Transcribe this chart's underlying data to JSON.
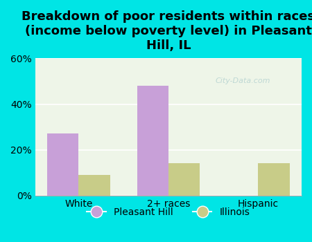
{
  "title": "Breakdown of poor residents within races\n(income below poverty level) in Pleasant\nHill, IL",
  "categories": [
    "White",
    "2+ races",
    "Hispanic"
  ],
  "pleasant_hill": [
    27,
    48,
    0
  ],
  "illinois": [
    9,
    14,
    14
  ],
  "pleasant_hill_color": "#c8a0d8",
  "illinois_color": "#c8cc88",
  "bg_color_fig": "#00e5e5",
  "bg_color_chart": "#eef5e8",
  "ylim": [
    0,
    60
  ],
  "yticks": [
    0,
    20,
    40,
    60
  ],
  "ytick_labels": [
    "0%",
    "20%",
    "40%",
    "60%"
  ],
  "legend_labels": [
    "Pleasant Hill",
    "Illinois"
  ],
  "watermark": "City-Data.com",
  "title_fontsize": 13,
  "bar_width": 0.35
}
